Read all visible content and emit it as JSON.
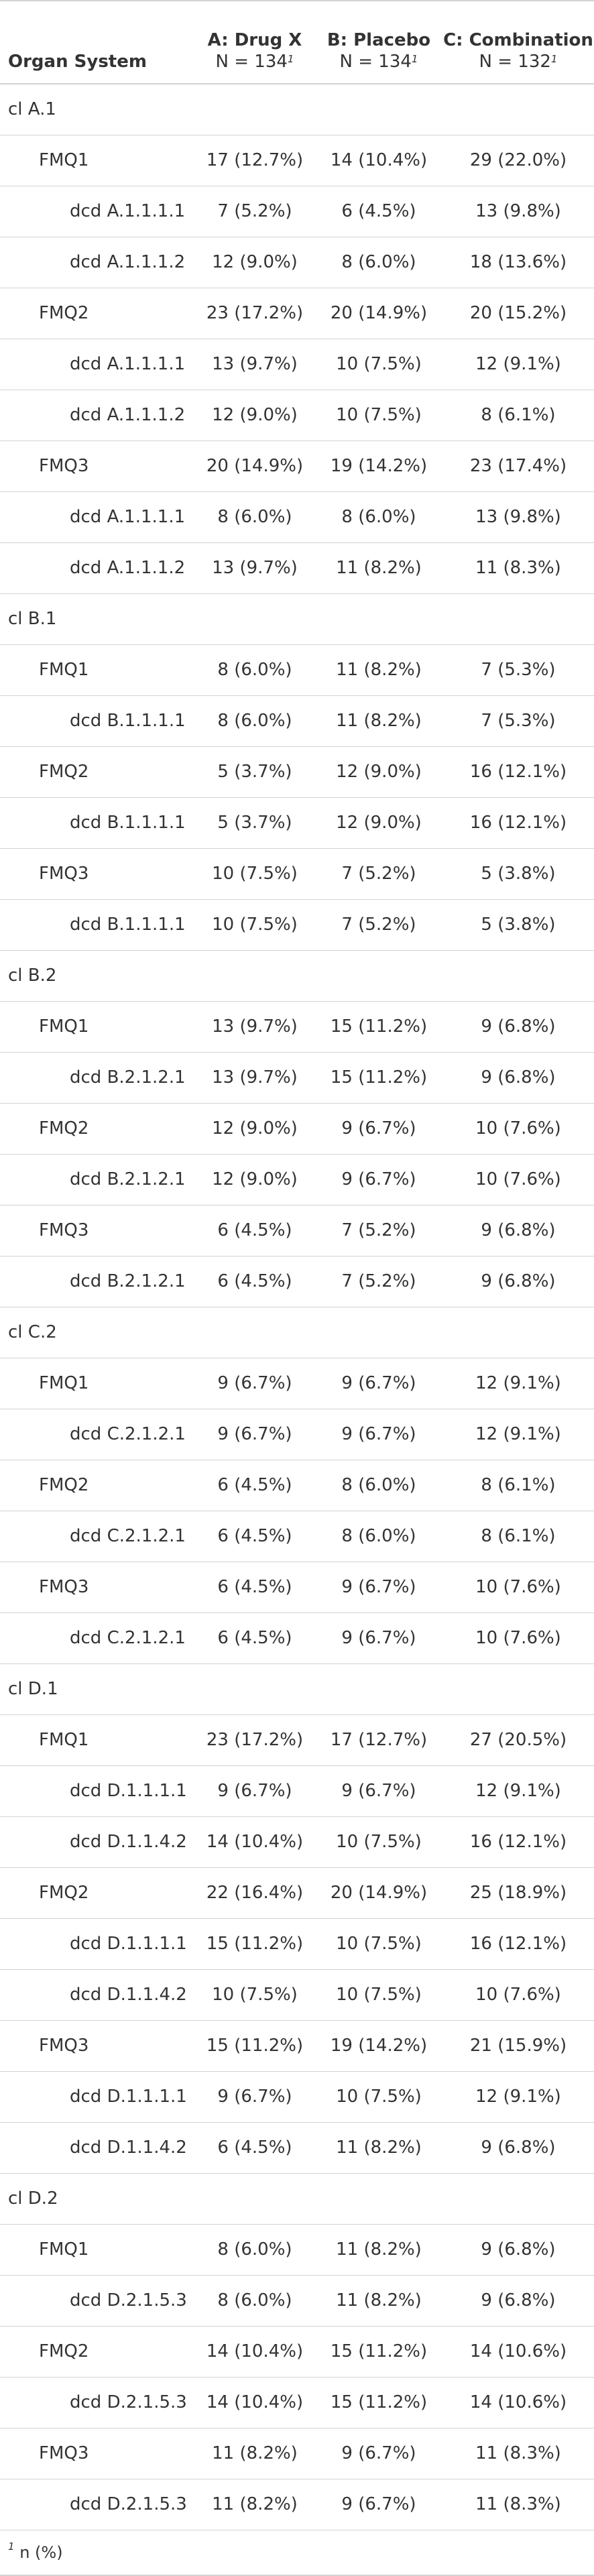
{
  "table": {
    "header": {
      "label": "Organ System",
      "columns": [
        {
          "name": "A: Drug X",
          "n": "N = 134"
        },
        {
          "name": "B: Placebo",
          "n": "N = 134"
        },
        {
          "name": "C: Combination",
          "n": "N = 132"
        }
      ],
      "footnote_mark": "1"
    },
    "rows": [
      {
        "label": "cl A.1",
        "level": 0,
        "values": [
          "",
          "",
          ""
        ]
      },
      {
        "label": "FMQ1",
        "level": 1,
        "values": [
          "17 (12.7%)",
          "14 (10.4%)",
          "29 (22.0%)"
        ]
      },
      {
        "label": "dcd A.1.1.1.1",
        "level": 2,
        "values": [
          "7 (5.2%)",
          "6 (4.5%)",
          "13 (9.8%)"
        ]
      },
      {
        "label": "dcd A.1.1.1.2",
        "level": 2,
        "values": [
          "12 (9.0%)",
          "8 (6.0%)",
          "18 (13.6%)"
        ]
      },
      {
        "label": "FMQ2",
        "level": 1,
        "values": [
          "23 (17.2%)",
          "20 (14.9%)",
          "20 (15.2%)"
        ]
      },
      {
        "label": "dcd A.1.1.1.1",
        "level": 2,
        "values": [
          "13 (9.7%)",
          "10 (7.5%)",
          "12 (9.1%)"
        ]
      },
      {
        "label": "dcd A.1.1.1.2",
        "level": 2,
        "values": [
          "12 (9.0%)",
          "10 (7.5%)",
          "8 (6.1%)"
        ]
      },
      {
        "label": "FMQ3",
        "level": 1,
        "values": [
          "20 (14.9%)",
          "19 (14.2%)",
          "23 (17.4%)"
        ]
      },
      {
        "label": "dcd A.1.1.1.1",
        "level": 2,
        "values": [
          "8 (6.0%)",
          "8 (6.0%)",
          "13 (9.8%)"
        ]
      },
      {
        "label": "dcd A.1.1.1.2",
        "level": 2,
        "values": [
          "13 (9.7%)",
          "11 (8.2%)",
          "11 (8.3%)"
        ]
      },
      {
        "label": "cl B.1",
        "level": 0,
        "values": [
          "",
          "",
          ""
        ]
      },
      {
        "label": "FMQ1",
        "level": 1,
        "values": [
          "8 (6.0%)",
          "11 (8.2%)",
          "7 (5.3%)"
        ]
      },
      {
        "label": "dcd B.1.1.1.1",
        "level": 2,
        "values": [
          "8 (6.0%)",
          "11 (8.2%)",
          "7 (5.3%)"
        ]
      },
      {
        "label": "FMQ2",
        "level": 1,
        "values": [
          "5 (3.7%)",
          "12 (9.0%)",
          "16 (12.1%)"
        ]
      },
      {
        "label": "dcd B.1.1.1.1",
        "level": 2,
        "values": [
          "5 (3.7%)",
          "12 (9.0%)",
          "16 (12.1%)"
        ]
      },
      {
        "label": "FMQ3",
        "level": 1,
        "values": [
          "10 (7.5%)",
          "7 (5.2%)",
          "5 (3.8%)"
        ]
      },
      {
        "label": "dcd B.1.1.1.1",
        "level": 2,
        "values": [
          "10 (7.5%)",
          "7 (5.2%)",
          "5 (3.8%)"
        ]
      },
      {
        "label": "cl B.2",
        "level": 0,
        "values": [
          "",
          "",
          ""
        ]
      },
      {
        "label": "FMQ1",
        "level": 1,
        "values": [
          "13 (9.7%)",
          "15 (11.2%)",
          "9 (6.8%)"
        ]
      },
      {
        "label": "dcd B.2.1.2.1",
        "level": 2,
        "values": [
          "13 (9.7%)",
          "15 (11.2%)",
          "9 (6.8%)"
        ]
      },
      {
        "label": "FMQ2",
        "level": 1,
        "values": [
          "12 (9.0%)",
          "9 (6.7%)",
          "10 (7.6%)"
        ]
      },
      {
        "label": "dcd B.2.1.2.1",
        "level": 2,
        "values": [
          "12 (9.0%)",
          "9 (6.7%)",
          "10 (7.6%)"
        ]
      },
      {
        "label": "FMQ3",
        "level": 1,
        "values": [
          "6 (4.5%)",
          "7 (5.2%)",
          "9 (6.8%)"
        ]
      },
      {
        "label": "dcd B.2.1.2.1",
        "level": 2,
        "values": [
          "6 (4.5%)",
          "7 (5.2%)",
          "9 (6.8%)"
        ]
      },
      {
        "label": "cl C.2",
        "level": 0,
        "values": [
          "",
          "",
          ""
        ]
      },
      {
        "label": "FMQ1",
        "level": 1,
        "values": [
          "9 (6.7%)",
          "9 (6.7%)",
          "12 (9.1%)"
        ]
      },
      {
        "label": "dcd C.2.1.2.1",
        "level": 2,
        "values": [
          "9 (6.7%)",
          "9 (6.7%)",
          "12 (9.1%)"
        ]
      },
      {
        "label": "FMQ2",
        "level": 1,
        "values": [
          "6 (4.5%)",
          "8 (6.0%)",
          "8 (6.1%)"
        ]
      },
      {
        "label": "dcd C.2.1.2.1",
        "level": 2,
        "values": [
          "6 (4.5%)",
          "8 (6.0%)",
          "8 (6.1%)"
        ]
      },
      {
        "label": "FMQ3",
        "level": 1,
        "values": [
          "6 (4.5%)",
          "9 (6.7%)",
          "10 (7.6%)"
        ]
      },
      {
        "label": "dcd C.2.1.2.1",
        "level": 2,
        "values": [
          "6 (4.5%)",
          "9 (6.7%)",
          "10 (7.6%)"
        ]
      },
      {
        "label": "cl D.1",
        "level": 0,
        "values": [
          "",
          "",
          ""
        ]
      },
      {
        "label": "FMQ1",
        "level": 1,
        "values": [
          "23 (17.2%)",
          "17 (12.7%)",
          "27 (20.5%)"
        ]
      },
      {
        "label": "dcd D.1.1.1.1",
        "level": 2,
        "values": [
          "9 (6.7%)",
          "9 (6.7%)",
          "12 (9.1%)"
        ]
      },
      {
        "label": "dcd D.1.1.4.2",
        "level": 2,
        "values": [
          "14 (10.4%)",
          "10 (7.5%)",
          "16 (12.1%)"
        ]
      },
      {
        "label": "FMQ2",
        "level": 1,
        "values": [
          "22 (16.4%)",
          "20 (14.9%)",
          "25 (18.9%)"
        ]
      },
      {
        "label": "dcd D.1.1.1.1",
        "level": 2,
        "values": [
          "15 (11.2%)",
          "10 (7.5%)",
          "16 (12.1%)"
        ]
      },
      {
        "label": "dcd D.1.1.4.2",
        "level": 2,
        "values": [
          "10 (7.5%)",
          "10 (7.5%)",
          "10 (7.6%)"
        ]
      },
      {
        "label": "FMQ3",
        "level": 1,
        "values": [
          "15 (11.2%)",
          "19 (14.2%)",
          "21 (15.9%)"
        ]
      },
      {
        "label": "dcd D.1.1.1.1",
        "level": 2,
        "values": [
          "9 (6.7%)",
          "10 (7.5%)",
          "12 (9.1%)"
        ]
      },
      {
        "label": "dcd D.1.1.4.2",
        "level": 2,
        "values": [
          "6 (4.5%)",
          "11 (8.2%)",
          "9 (6.8%)"
        ]
      },
      {
        "label": "cl D.2",
        "level": 0,
        "values": [
          "",
          "",
          ""
        ]
      },
      {
        "label": "FMQ1",
        "level": 1,
        "values": [
          "8 (6.0%)",
          "11 (8.2%)",
          "9 (6.8%)"
        ]
      },
      {
        "label": "dcd D.2.1.5.3",
        "level": 2,
        "values": [
          "8 (6.0%)",
          "11 (8.2%)",
          "9 (6.8%)"
        ]
      },
      {
        "label": "FMQ2",
        "level": 1,
        "values": [
          "14 (10.4%)",
          "15 (11.2%)",
          "14 (10.6%)"
        ]
      },
      {
        "label": "dcd D.2.1.5.3",
        "level": 2,
        "values": [
          "14 (10.4%)",
          "15 (11.2%)",
          "14 (10.6%)"
        ]
      },
      {
        "label": "FMQ3",
        "level": 1,
        "values": [
          "11 (8.2%)",
          "9 (6.7%)",
          "11 (8.3%)"
        ]
      },
      {
        "label": "dcd D.2.1.5.3",
        "level": 2,
        "values": [
          "11 (8.2%)",
          "9 (6.7%)",
          "11 (8.3%)"
        ]
      }
    ],
    "footnote": {
      "mark": "1",
      "text": "n (%)"
    }
  }
}
